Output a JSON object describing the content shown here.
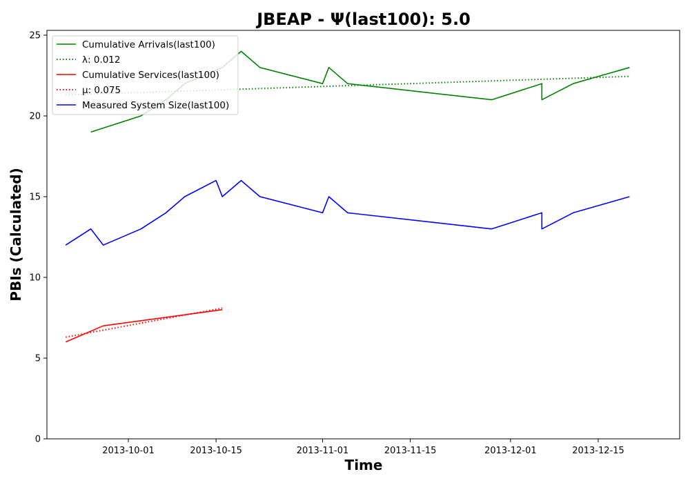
{
  "chart_data": {
    "type": "line",
    "title": "JBEAP -  Ψ(last100): 5.0",
    "xlabel": "Time",
    "ylabel": "PBIs (Calculated)",
    "x_tick_labels": [
      "2013-10-01",
      "2013-10-15",
      "2013-11-01",
      "2013-11-15",
      "2013-12-01",
      "2013-12-15"
    ],
    "y_tick_labels": [
      "0",
      "5",
      "10",
      "15",
      "20",
      "25"
    ],
    "ylim": [
      0,
      25.3
    ],
    "xlim": [
      "2013-09-18",
      "2013-12-28"
    ],
    "grid": false,
    "legend_position": "top-left",
    "series": [
      {
        "name": "Cumulative Arrivals(last100)",
        "color": "#008000",
        "style": "solid",
        "points": [
          [
            "2013-09-25",
            19
          ],
          [
            "2013-10-03",
            20
          ],
          [
            "2013-10-07",
            21
          ],
          [
            "2013-10-10",
            22
          ],
          [
            "2013-10-16",
            23
          ],
          [
            "2013-10-19",
            24
          ],
          [
            "2013-10-22",
            23
          ],
          [
            "2013-11-01",
            22
          ],
          [
            "2013-11-02",
            23
          ],
          [
            "2013-11-05",
            22
          ],
          [
            "2013-11-28",
            21
          ],
          [
            "2013-12-06",
            22
          ],
          [
            "2013-12-06",
            21
          ],
          [
            "2013-12-11",
            22
          ],
          [
            "2013-12-20",
            23
          ]
        ]
      },
      {
        "name": "λ: 0.012",
        "color": "#008000",
        "style": "dotted",
        "points": [
          [
            "2013-09-21",
            21.3
          ],
          [
            "2013-12-20",
            22.45
          ]
        ]
      },
      {
        "name": "Cumulative Services(last100)",
        "color": "#ff0000",
        "style": "solid",
        "points": [
          [
            "2013-09-21",
            6
          ],
          [
            "2013-09-27",
            7
          ],
          [
            "2013-10-16",
            8
          ]
        ]
      },
      {
        "name": "μ: 0.075",
        "color": "#ff0000",
        "style": "dotted",
        "points": [
          [
            "2013-09-21",
            6.3
          ],
          [
            "2013-10-16",
            8.1
          ]
        ]
      },
      {
        "name": "Measured System Size(last100)",
        "color": "#0000ff",
        "style": "solid",
        "points": [
          [
            "2013-09-21",
            12
          ],
          [
            "2013-09-25",
            13
          ],
          [
            "2013-09-27",
            12
          ],
          [
            "2013-10-03",
            13
          ],
          [
            "2013-10-07",
            14
          ],
          [
            "2013-10-10",
            15
          ],
          [
            "2013-10-15",
            16
          ],
          [
            "2013-10-16",
            15
          ],
          [
            "2013-10-19",
            16
          ],
          [
            "2013-10-22",
            15
          ],
          [
            "2013-11-01",
            14
          ],
          [
            "2013-11-02",
            15
          ],
          [
            "2013-11-05",
            14
          ],
          [
            "2013-11-28",
            13
          ],
          [
            "2013-12-06",
            14
          ],
          [
            "2013-12-06",
            13
          ],
          [
            "2013-12-11",
            14
          ],
          [
            "2013-12-20",
            15
          ]
        ]
      }
    ]
  }
}
